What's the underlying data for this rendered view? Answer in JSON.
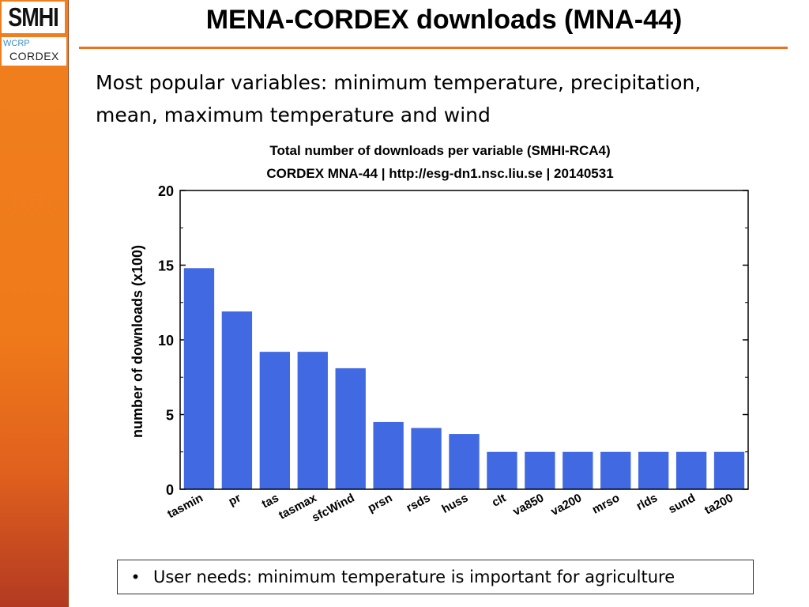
{
  "slide": {
    "title": "MENA-CORDEX downloads (MNA-44)",
    "intro_line1": "Most popular variables: minimum temperature, precipitation,",
    "intro_line2": "mean, maximum temperature and wind",
    "callout_bullet": "•",
    "callout_text": "User needs: minimum temperature is important for agriculture",
    "accent_color": "#e8731c"
  },
  "logos": {
    "smhi": "SMHI",
    "wcrp": "WCRP",
    "cordex": "CORDEX"
  },
  "chart_data": {
    "type": "bar",
    "title": "Total number of downloads per variable (SMHI-RCA4)",
    "subtitle": "CORDEX MNA-44 | http://esg-dn1.nsc.liu.se | 20140531",
    "xlabel": "",
    "ylabel": "number of downloads (x100)",
    "categories": [
      "tasmin",
      "pr",
      "tas",
      "tasmax",
      "sfcWind",
      "prsn",
      "rsds",
      "huss",
      "clt",
      "va850",
      "va200",
      "mrso",
      "rlds",
      "sund",
      "ta200"
    ],
    "values": [
      14.8,
      11.9,
      9.2,
      9.2,
      8.1,
      4.5,
      4.1,
      3.7,
      2.5,
      2.5,
      2.5,
      2.5,
      2.5,
      2.5,
      2.5
    ],
    "ylim": [
      0,
      20
    ],
    "yticks": [
      0,
      5,
      10,
      15,
      20
    ],
    "grid": false,
    "bar_color": "#4169e1"
  }
}
